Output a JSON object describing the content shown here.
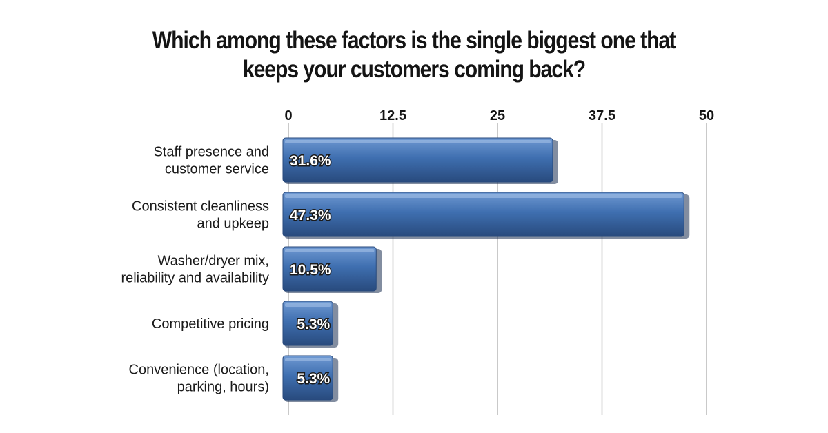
{
  "chart_data": {
    "type": "bar",
    "orientation": "horizontal",
    "title": "Which among these factors is the single biggest one that keeps your customers coming back?",
    "title_lines": [
      "Which among these factors is the single biggest one that",
      "keeps your customers coming back?"
    ],
    "categories": [
      [
        "Staff presence and",
        "customer service"
      ],
      [
        "Consistent cleanliness",
        "and upkeep"
      ],
      [
        "Washer/dryer mix,",
        "reliability and availability"
      ],
      [
        "Competitive pricing"
      ],
      [
        "Convenience (location,",
        "parking, hours)"
      ]
    ],
    "values": [
      31.6,
      47.3,
      10.5,
      5.3,
      5.3
    ],
    "data_labels": [
      "31.6%",
      "47.3%",
      "10.5%",
      "5.3%",
      "5.3%"
    ],
    "xlim": [
      0,
      50
    ],
    "xticks": [
      0,
      12.5,
      25,
      37.5,
      50
    ],
    "xtick_labels": [
      "0",
      "12.5",
      "25",
      "37.5",
      "50"
    ],
    "x_axis_position": "top",
    "grid": true,
    "colors": {
      "bar": "#3f6fb0",
      "bar_light": "#6f99d2",
      "bar_dark": "#284a7d",
      "bar_shadow": "#1b2f52",
      "grid": "#b7b7b7"
    }
  }
}
